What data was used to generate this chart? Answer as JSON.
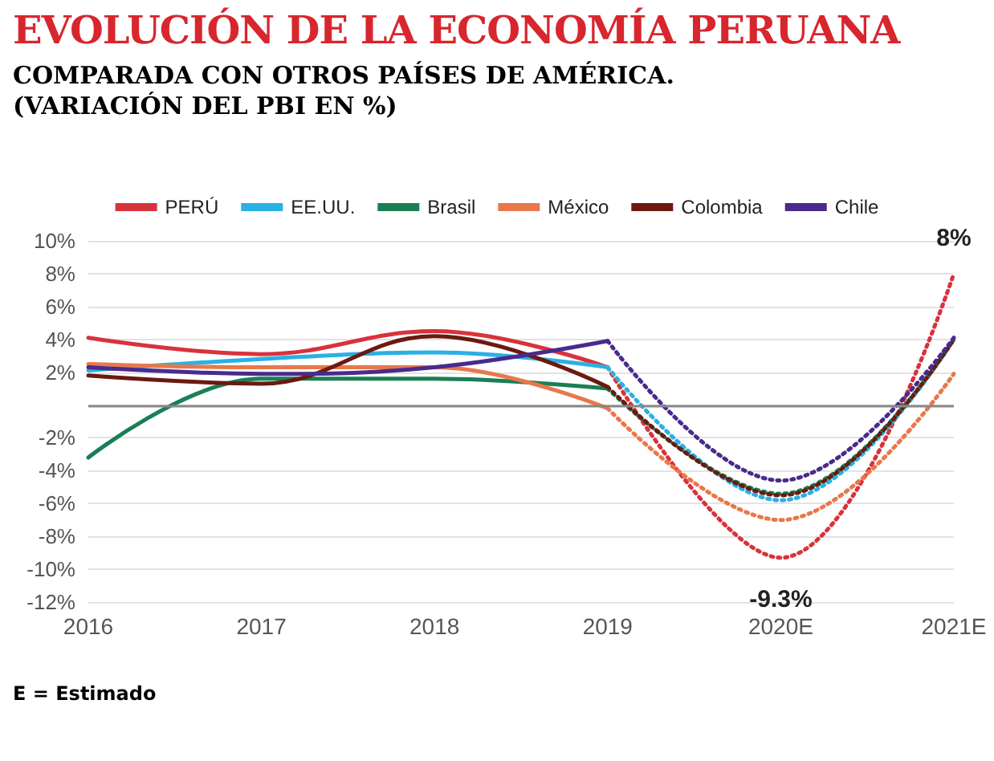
{
  "chart_data": {
    "type": "line",
    "title": "EVOLUCIÓN DE LA ECONOMÍA PERUANA",
    "subtitle": "COMPARADA CON OTROS PAÍSES DE AMÉRICA.\n(VARIACIÓN DEL PBI EN %)",
    "categories": [
      "2016",
      "2017",
      "2018",
      "2019",
      "2020E",
      "2021E"
    ],
    "series": [
      {
        "name": "PERÚ",
        "color": "#d8323c",
        "values": [
          4.1,
          3.1,
          4.5,
          2.3,
          null,
          null
        ],
        "line_style": "solid"
      },
      {
        "name": "EE.UU.",
        "color": "#2ab0e4",
        "values": [
          2.1,
          2.8,
          3.2,
          2.3,
          null,
          null
        ],
        "line_style": "solid"
      },
      {
        "name": "Brasil",
        "color": "#1a7f55",
        "values": [
          -3.2,
          1.6,
          1.6,
          1.0,
          null,
          null
        ],
        "line_style": "solid"
      },
      {
        "name": "México",
        "color": "#e8784a",
        "values": [
          2.5,
          2.3,
          2.3,
          -0.2,
          null,
          null
        ],
        "line_style": "solid"
      },
      {
        "name": "Colombia",
        "color": "#6b1a10",
        "values": [
          1.8,
          1.3,
          4.2,
          1.1,
          null,
          null
        ],
        "line_style": "solid"
      },
      {
        "name": "Chile",
        "color": "#4a2a8c",
        "values": [
          2.3,
          1.9,
          2.3,
          3.9,
          null,
          null
        ],
        "line_style": "solid"
      },
      {
        "color": "#d8323c",
        "values": [
          null,
          null,
          null,
          2.3,
          -9.3,
          8
        ],
        "line_style": "dotted",
        "value_labels": [
          null,
          null,
          null,
          null,
          "-9.3%",
          "8%"
        ]
      },
      {
        "color": "#2ab0e4",
        "values": [
          null,
          null,
          null,
          2.3,
          -5.8,
          4
        ],
        "line_style": "dotted"
      },
      {
        "color": "#1a7f55",
        "values": [
          null,
          null,
          null,
          1.0,
          -5.4,
          4
        ],
        "line_style": "dotted"
      },
      {
        "color": "#e8784a",
        "values": [
          null,
          null,
          null,
          -0.2,
          -7.0,
          1.9
        ],
        "line_style": "dotted"
      },
      {
        "color": "#6b1a10",
        "values": [
          null,
          null,
          null,
          1.1,
          -5.5,
          4
        ],
        "line_style": "dotted"
      },
      {
        "color": "#4a2a8c",
        "values": [
          null,
          null,
          null,
          3.9,
          -4.6,
          4.1
        ],
        "line_style": "dotted"
      }
    ],
    "ylim": [
      -12,
      10
    ],
    "yticks": [
      {
        "value": -12,
        "label": "-12%"
      },
      {
        "value": -10,
        "label": "-10%"
      },
      {
        "value": -8,
        "label": "-8%"
      },
      {
        "value": -6,
        "label": "-6%"
      },
      {
        "value": -4,
        "label": "-4%"
      },
      {
        "value": -2,
        "label": "-2%"
      },
      {
        "value": 0,
        "label": null
      },
      {
        "value": 2,
        "label": "2%"
      },
      {
        "value": 4,
        "label": "4%"
      },
      {
        "value": 6,
        "label": "6%"
      },
      {
        "value": 8,
        "label": "8%"
      },
      {
        "value": 10,
        "label": "10%"
      }
    ],
    "ref_lines": [
      {
        "axis": "y",
        "value": 0,
        "color": "#888888"
      }
    ],
    "grid": "y",
    "legend": "top",
    "marker": "none",
    "annotations": [
      "E = Estimado"
    ]
  }
}
